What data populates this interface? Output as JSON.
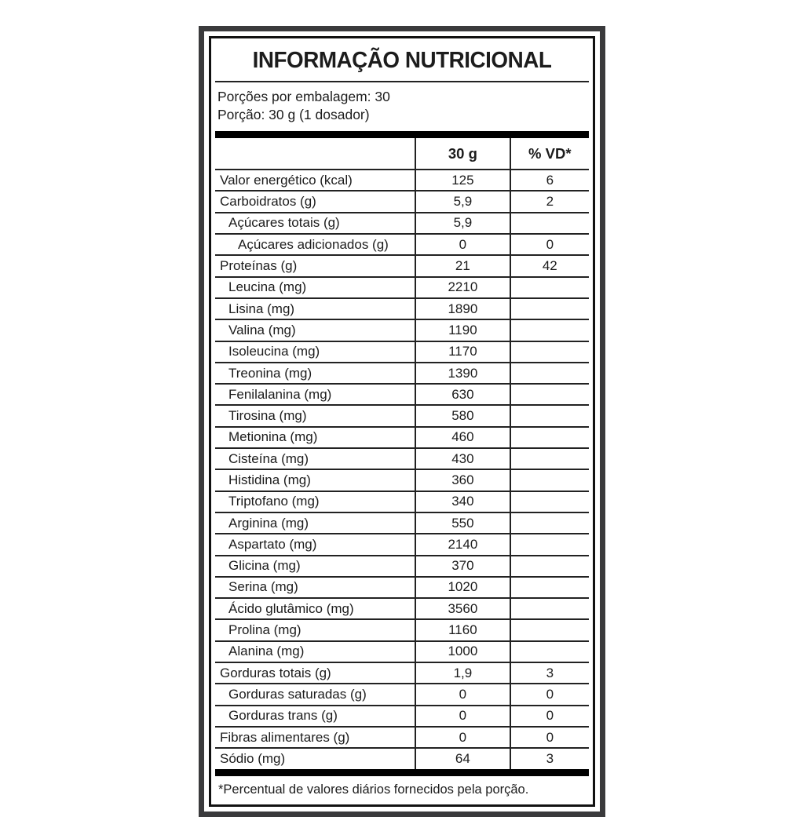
{
  "label": {
    "title": "INFORMAÇÃO NUTRICIONAL",
    "servings": {
      "line1": "Porções por embalagem: 30",
      "line2": "Porção: 30 g (1 dosador)"
    },
    "columns": {
      "name": "",
      "amount": "30 g",
      "dv": "% VD*"
    },
    "rows": [
      {
        "name": "Valor energético (kcal)",
        "amount": "125",
        "dv": "6",
        "indent": 0
      },
      {
        "name": "Carboidratos (g)",
        "amount": "5,9",
        "dv": "2",
        "indent": 0
      },
      {
        "name": "Açúcares totais (g)",
        "amount": "5,9",
        "dv": "",
        "indent": 1
      },
      {
        "name": "Açúcares adicionados (g)",
        "amount": "0",
        "dv": "0",
        "indent": 2
      },
      {
        "name": "Proteínas (g)",
        "amount": "21",
        "dv": "42",
        "indent": 0
      },
      {
        "name": "Leucina (mg)",
        "amount": "2210",
        "dv": "",
        "indent": 1
      },
      {
        "name": "Lisina (mg)",
        "amount": "1890",
        "dv": "",
        "indent": 1
      },
      {
        "name": "Valina (mg)",
        "amount": "1190",
        "dv": "",
        "indent": 1
      },
      {
        "name": "Isoleucina (mg)",
        "amount": "1170",
        "dv": "",
        "indent": 1
      },
      {
        "name": "Treonina (mg)",
        "amount": "1390",
        "dv": "",
        "indent": 1
      },
      {
        "name": "Fenilalanina (mg)",
        "amount": "630",
        "dv": "",
        "indent": 1
      },
      {
        "name": "Tirosina (mg)",
        "amount": "580",
        "dv": "",
        "indent": 1
      },
      {
        "name": "Metionina (mg)",
        "amount": "460",
        "dv": "",
        "indent": 1
      },
      {
        "name": "Cisteína (mg)",
        "amount": "430",
        "dv": "",
        "indent": 1
      },
      {
        "name": "Histidina (mg)",
        "amount": "360",
        "dv": "",
        "indent": 1
      },
      {
        "name": "Triptofano (mg)",
        "amount": "340",
        "dv": "",
        "indent": 1
      },
      {
        "name": "Arginina (mg)",
        "amount": "550",
        "dv": "",
        "indent": 1
      },
      {
        "name": "Aspartato (mg)",
        "amount": "2140",
        "dv": "",
        "indent": 1
      },
      {
        "name": "Glicina (mg)",
        "amount": "370",
        "dv": "",
        "indent": 1
      },
      {
        "name": "Serina (mg)",
        "amount": "1020",
        "dv": "",
        "indent": 1
      },
      {
        "name": "Ácido glutâmico (mg)",
        "amount": "3560",
        "dv": "",
        "indent": 1
      },
      {
        "name": "Prolina (mg)",
        "amount": "1160",
        "dv": "",
        "indent": 1
      },
      {
        "name": "Alanina (mg)",
        "amount": "1000",
        "dv": "",
        "indent": 1
      },
      {
        "name": "Gorduras totais (g)",
        "amount": "1,9",
        "dv": "3",
        "indent": 0
      },
      {
        "name": "Gorduras saturadas (g)",
        "amount": "0",
        "dv": "0",
        "indent": 1
      },
      {
        "name": "Gorduras trans (g)",
        "amount": "0",
        "dv": "0",
        "indent": 1
      },
      {
        "name": "Fibras alimentares (g)",
        "amount": "0",
        "dv": "0",
        "indent": 0
      },
      {
        "name": "Sódio (mg)",
        "amount": "64",
        "dv": "3",
        "indent": 0
      }
    ],
    "footnote": "*Percentual de valores diários fornecidos pela porção.",
    "colors": {
      "frame": "#3a3a3c",
      "border": "#111111",
      "line": "#222222",
      "background": "#ffffff",
      "text": "#1c1c1c"
    }
  }
}
